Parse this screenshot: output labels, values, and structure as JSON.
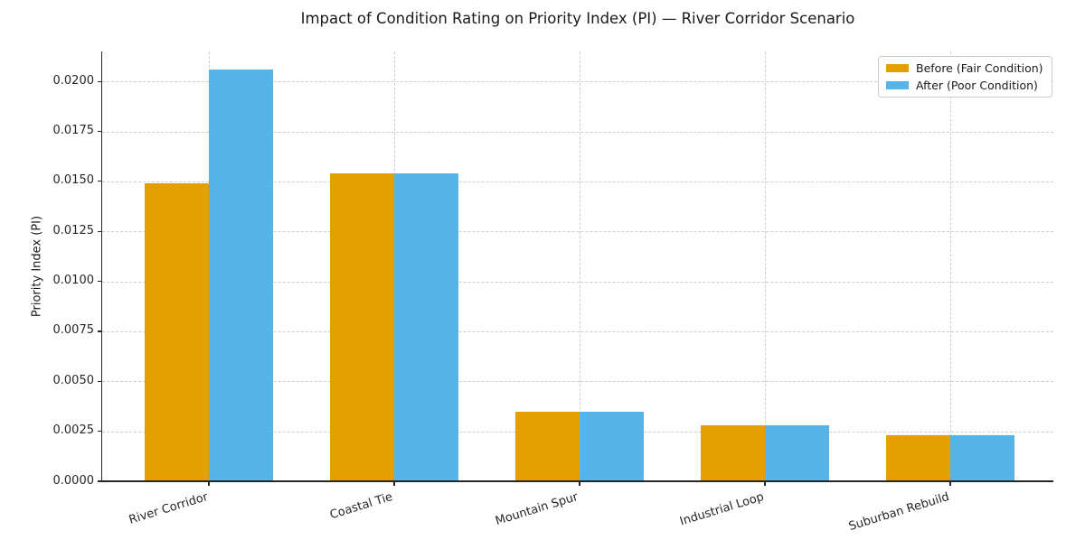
{
  "chart_data": {
    "type": "bar",
    "title": "Impact of Condition Rating on Priority Index (PI) — River Corridor Scenario",
    "xlabel": "",
    "ylabel": "Priority Index (PI)",
    "categories": [
      "River Corridor",
      "Coastal Tie",
      "Mountain Spur",
      "Industrial Loop",
      "Suburban Rebuild"
    ],
    "series": [
      {
        "name": "Before (Fair Condition)",
        "color": "#E69F00",
        "values": [
          0.0149,
          0.0154,
          0.0035,
          0.0028,
          0.0023
        ]
      },
      {
        "name": "After (Poor Condition)",
        "color": "#56B4E9",
        "values": [
          0.0206,
          0.0154,
          0.0035,
          0.0028,
          0.0023
        ]
      }
    ],
    "ylim": [
      0,
      0.0215
    ],
    "yticks": [
      "0.0000",
      "0.0025",
      "0.0050",
      "0.0075",
      "0.0100",
      "0.0125",
      "0.0150",
      "0.0175",
      "0.0200"
    ],
    "grid": "dashed horizontal at y-ticks and dashed vertical at category centers",
    "legend_position": "upper right",
    "axis_color": "#262626",
    "grid_color": "#cdcdcd"
  }
}
